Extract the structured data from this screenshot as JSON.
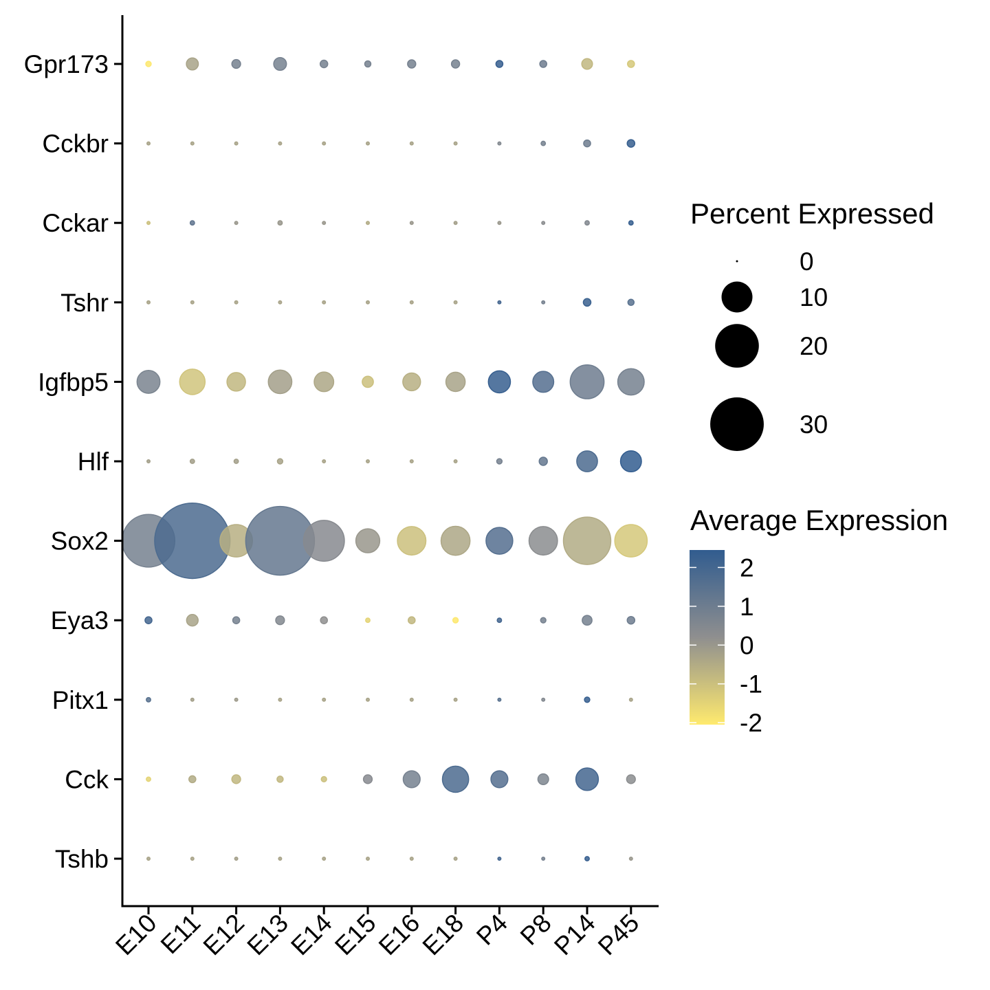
{
  "chart_data": {
    "type": "scatter",
    "subtype": "dot-plot",
    "x_categories": [
      "E10",
      "E11",
      "E12",
      "E13",
      "E14",
      "E15",
      "E16",
      "E18",
      "P4",
      "P8",
      "P14",
      "P45"
    ],
    "y_categories": [
      "Gpr173",
      "Cckbr",
      "Cckar",
      "Tshr",
      "Igfbp5",
      "Hlf",
      "Sox2",
      "Eya3",
      "Pitx1",
      "Cck",
      "Tshb"
    ],
    "percent_expressed": [
      [
        0.3,
        1.5,
        0.8,
        1.7,
        0.6,
        0.4,
        0.7,
        0.7,
        0.5,
        0.5,
        1.2,
        0.5
      ],
      [
        0.1,
        0.1,
        0.1,
        0.1,
        0.1,
        0.1,
        0.1,
        0.1,
        0.1,
        0.2,
        0.5,
        0.6
      ],
      [
        0.1,
        0.2,
        0.1,
        0.2,
        0.1,
        0.1,
        0.1,
        0.1,
        0.1,
        0.1,
        0.2,
        0.2
      ],
      [
        0.1,
        0.1,
        0.1,
        0.1,
        0.1,
        0.1,
        0.1,
        0.1,
        0.1,
        0.1,
        0.6,
        0.4
      ],
      [
        5.5,
        6.8,
        3.6,
        5.8,
        4.0,
        1.3,
        3.3,
        3.9,
        5.1,
        4.6,
        12.0,
        7.3
      ],
      [
        0.1,
        0.2,
        0.2,
        0.3,
        0.1,
        0.1,
        0.1,
        0.1,
        0.3,
        0.7,
        4.5,
        4.6
      ],
      [
        29.0,
        59.5,
        11.0,
        49.5,
        17.5,
        6.0,
        8.5,
        8.8,
        7.5,
        8.5,
        23.5,
        11.0
      ],
      [
        0.5,
        1.4,
        0.5,
        0.8,
        0.5,
        0.2,
        0.5,
        0.3,
        0.2,
        0.3,
        1.0,
        0.6
      ],
      [
        0.2,
        0.1,
        0.1,
        0.1,
        0.1,
        0.1,
        0.1,
        0.1,
        0.1,
        0.1,
        0.3,
        0.1
      ],
      [
        0.2,
        0.5,
        0.8,
        0.4,
        0.3,
        0.8,
        3.0,
        7.2,
        3.0,
        1.2,
        5.3,
        0.8
      ],
      [
        0.1,
        0.1,
        0.1,
        0.1,
        0.1,
        0.1,
        0.1,
        0.1,
        0.1,
        0.1,
        0.2,
        0.1
      ]
    ],
    "average_expression": [
      [
        -2.0,
        -0.3,
        0.8,
        0.8,
        0.8,
        0.8,
        0.8,
        0.8,
        2.3,
        1.0,
        -0.8,
        -1.2
      ],
      [
        -0.3,
        -0.3,
        -0.3,
        -0.3,
        -0.3,
        -0.3,
        -0.3,
        -0.3,
        0.5,
        0.8,
        1.0,
        2.3
      ],
      [
        -1.0,
        1.3,
        0.0,
        0.0,
        0.0,
        -0.5,
        0.0,
        -0.2,
        0.0,
        0.3,
        0.5,
        2.3
      ],
      [
        -0.3,
        -0.3,
        -0.3,
        -0.3,
        -0.3,
        -0.3,
        -0.3,
        -0.3,
        2.0,
        0.8,
        2.2,
        1.5
      ],
      [
        0.7,
        -1.1,
        -0.8,
        -0.2,
        -0.4,
        -1.0,
        -0.6,
        -0.3,
        2.3,
        1.6,
        1.0,
        0.8
      ],
      [
        -0.2,
        -0.2,
        -0.2,
        -0.3,
        -0.3,
        -0.3,
        -0.3,
        -0.3,
        0.8,
        1.2,
        1.8,
        2.4
      ],
      [
        0.8,
        1.8,
        -0.6,
        1.2,
        0.4,
        0.0,
        -1.0,
        -0.4,
        1.6,
        0.3,
        -0.5,
        -1.2
      ],
      [
        2.0,
        -0.3,
        0.8,
        0.5,
        0.2,
        -1.5,
        -0.8,
        -2.0,
        2.0,
        0.8,
        0.8,
        1.0
      ],
      [
        1.5,
        -0.2,
        -0.1,
        -0.3,
        -0.3,
        -0.3,
        -0.3,
        -0.3,
        1.5,
        0.5,
        2.3,
        -0.3
      ],
      [
        -1.5,
        -0.5,
        -0.8,
        -0.8,
        -1.0,
        0.4,
        0.8,
        1.8,
        1.6,
        0.6,
        2.0,
        0.3
      ],
      [
        -0.3,
        -0.3,
        -0.2,
        -0.3,
        -0.3,
        -0.3,
        -0.3,
        -0.3,
        2.0,
        0.8,
        2.3,
        0.0
      ]
    ],
    "size_legend": {
      "title": "Percent Expressed",
      "values": [
        0,
        10,
        20,
        30
      ],
      "labels": [
        "0",
        "10",
        "20",
        "30"
      ]
    },
    "color_legend": {
      "title": "Average Expression",
      "ticks": [
        2,
        1,
        0,
        -1,
        -2
      ],
      "labels": [
        "2",
        "1",
        "0",
        "-1",
        "-2"
      ],
      "range": [
        -2.05,
        2.45
      ],
      "low_color": "#FFEA6E",
      "mid_color": "#8F8F8F",
      "high_color": "#315C8F"
    },
    "grid": false,
    "legend_position": "right"
  }
}
